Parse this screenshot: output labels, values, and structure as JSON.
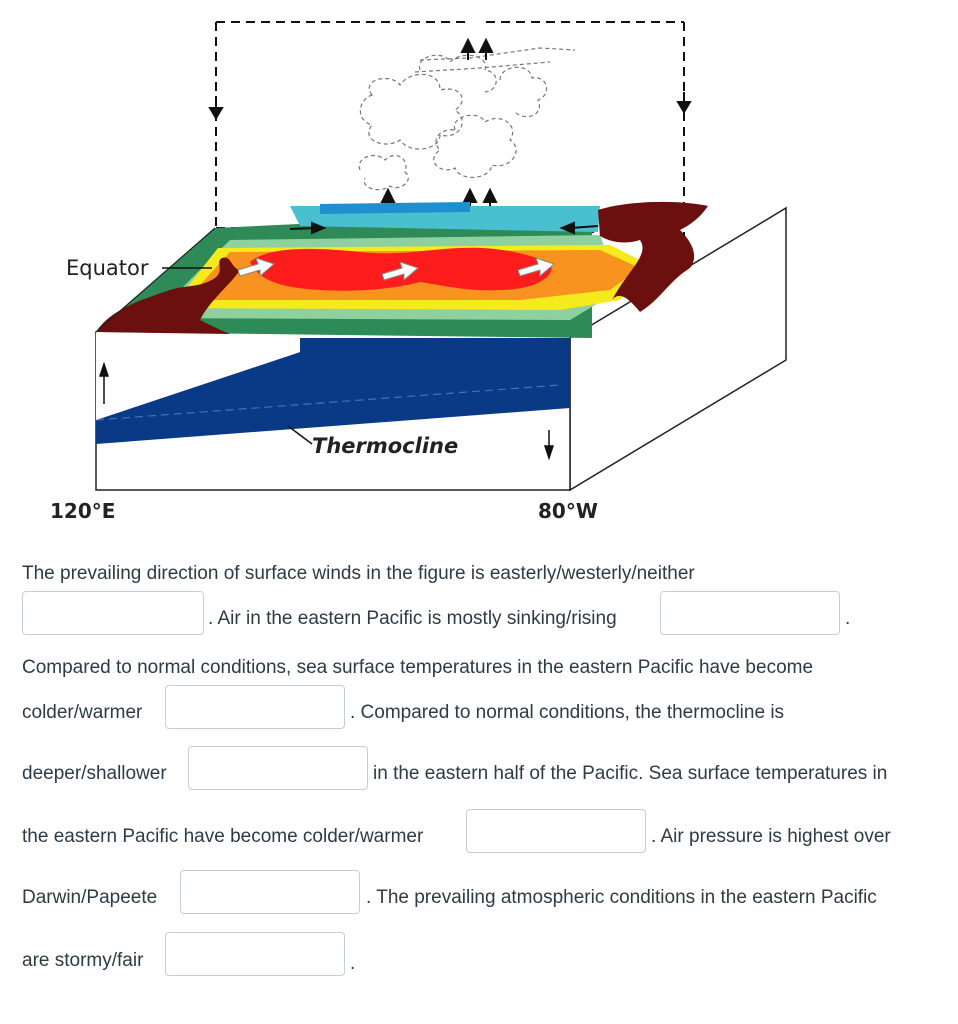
{
  "figure": {
    "equator_label": "Equator",
    "thermocline_label": "Thermocline",
    "left_longitude": "120°E",
    "right_longitude": "80°W"
  },
  "question": {
    "line1": "The prevailing direction of surface winds in the figure is easterly/westerly/neither",
    "line2_text": ". Air in the eastern Pacific is mostly sinking/rising",
    "line2_end": ".",
    "line3": "Compared to normal conditions, sea surface temperatures in the eastern Pacific have become",
    "line4_start": "colder/warmer",
    "line4_text": ". Compared to normal conditions, the thermocline is",
    "line5_start": "deeper/shallower",
    "line5_text": "in the eastern half of the Pacific. Sea surface temperatures in",
    "line6_start": "the eastern Pacific have become colder/warmer",
    "line6_text": ". Air pressure is highest over",
    "line7_start": "Darwin/Papeete",
    "line7_text": ". The prevailing atmospheric conditions in the eastern Pacific",
    "line8_start": "are stormy/fair",
    "line8_end": "."
  },
  "answers": {
    "wind_direction": "",
    "air_eastern": "",
    "sst_change": "",
    "thermocline": "",
    "sst_change_2": "",
    "pressure_high": "",
    "conditions": ""
  }
}
